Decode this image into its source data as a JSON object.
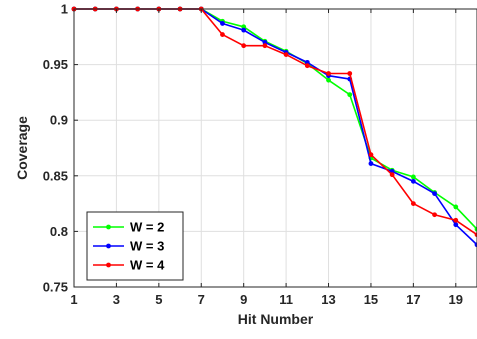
{
  "chart_data": {
    "type": "line",
    "title": "",
    "xlabel": "Hit Number",
    "ylabel": "Coverage",
    "xlim": [
      1,
      20
    ],
    "ylim": [
      0.75,
      1.0
    ],
    "xticks": [
      1,
      3,
      5,
      7,
      9,
      11,
      13,
      15,
      17,
      19
    ],
    "xtick_labels": [
      "1",
      "3",
      "5",
      "7",
      "9",
      "11",
      "13",
      "15",
      "17",
      "19"
    ],
    "yticks": [
      0.75,
      0.8,
      0.85,
      0.9,
      0.95,
      1.0
    ],
    "ytick_labels": [
      "0.75",
      "0.8",
      "0.85",
      "0.9",
      "0.95",
      "1"
    ],
    "grid": true,
    "legend_position": "bottom-left",
    "x": [
      1,
      2,
      3,
      4,
      5,
      6,
      7,
      8,
      9,
      10,
      11,
      12,
      13,
      14,
      15,
      16,
      17,
      18,
      19,
      20
    ],
    "series": [
      {
        "name": "W = 2",
        "color": "#00ff00",
        "values": [
          1.0,
          1.0,
          1.0,
          1.0,
          1.0,
          1.0,
          1.0,
          0.989,
          0.984,
          0.971,
          0.962,
          0.951,
          0.936,
          0.923,
          0.866,
          0.855,
          0.849,
          0.835,
          0.822,
          0.802
        ]
      },
      {
        "name": "W = 3",
        "color": "#0000ff",
        "values": [
          1.0,
          1.0,
          1.0,
          1.0,
          1.0,
          1.0,
          1.0,
          0.987,
          0.981,
          0.97,
          0.961,
          0.952,
          0.94,
          0.937,
          0.861,
          0.854,
          0.845,
          0.834,
          0.806,
          0.788
        ]
      },
      {
        "name": "W = 4",
        "color": "#ff0000",
        "values": [
          1.0,
          1.0,
          1.0,
          1.0,
          1.0,
          1.0,
          1.0,
          0.977,
          0.967,
          0.967,
          0.959,
          0.949,
          0.942,
          0.942,
          0.869,
          0.851,
          0.825,
          0.815,
          0.81,
          0.797
        ]
      }
    ]
  }
}
